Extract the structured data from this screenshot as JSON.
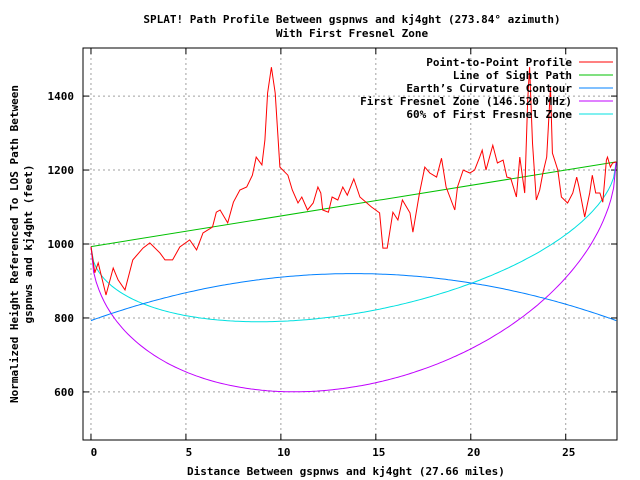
{
  "chart_data": {
    "type": "line",
    "title": "SPLAT! Path Profile Between gspnws and kj4ght (273.84° azimuth)",
    "subtitle": "With First Fresnel Zone",
    "xlabel": "Distance Between gspnws and kj4ght (27.66 miles)",
    "ylabel_lines": [
      "Normalized Height Referenced To LOS Path Between",
      "gspnws and kj4ght (feet)"
    ],
    "xlim": [
      -0.42,
      27.7
    ],
    "ylim": [
      470,
      1530
    ],
    "grid": true,
    "legend_placement": "top-right",
    "x_ticks": [
      0,
      5,
      10,
      15,
      20,
      25
    ],
    "y_ticks": [
      600,
      800,
      1000,
      1200,
      1400
    ],
    "path_length_miles": 27.66,
    "series": [
      {
        "name": "Point-to-Point Profile",
        "color": "#ff0000",
        "points": [
          [
            0,
            993
          ],
          [
            0.2,
            922
          ],
          [
            0.38,
            949
          ],
          [
            0.79,
            862
          ],
          [
            1.17,
            935
          ],
          [
            1.43,
            903
          ],
          [
            1.79,
            876
          ],
          [
            2.2,
            957
          ],
          [
            2.74,
            989
          ],
          [
            3.1,
            1003
          ],
          [
            3.63,
            976
          ],
          [
            3.9,
            957
          ],
          [
            4.3,
            957
          ],
          [
            4.68,
            992
          ],
          [
            5.2,
            1011
          ],
          [
            5.56,
            984
          ],
          [
            5.9,
            1030
          ],
          [
            6.4,
            1046
          ],
          [
            6.6,
            1086
          ],
          [
            6.8,
            1092
          ],
          [
            7.2,
            1057
          ],
          [
            7.5,
            1113
          ],
          [
            7.84,
            1146
          ],
          [
            8.2,
            1154
          ],
          [
            8.5,
            1186
          ],
          [
            8.7,
            1235
          ],
          [
            9.0,
            1214
          ],
          [
            9.16,
            1281
          ],
          [
            9.3,
            1408
          ],
          [
            9.5,
            1478
          ],
          [
            9.7,
            1408
          ],
          [
            9.95,
            1208
          ],
          [
            10.37,
            1186
          ],
          [
            10.6,
            1146
          ],
          [
            10.9,
            1111
          ],
          [
            11.1,
            1127
          ],
          [
            11.4,
            1092
          ],
          [
            11.7,
            1111
          ],
          [
            11.95,
            1154
          ],
          [
            12.1,
            1138
          ],
          [
            12.2,
            1092
          ],
          [
            12.5,
            1086
          ],
          [
            12.7,
            1127
          ],
          [
            13.0,
            1119
          ],
          [
            13.26,
            1154
          ],
          [
            13.5,
            1132
          ],
          [
            13.84,
            1176
          ],
          [
            14.16,
            1127
          ],
          [
            14.77,
            1100
          ],
          [
            15.2,
            1084
          ],
          [
            15.37,
            989
          ],
          [
            15.6,
            989
          ],
          [
            15.9,
            1086
          ],
          [
            16.16,
            1065
          ],
          [
            16.4,
            1119
          ],
          [
            16.8,
            1084
          ],
          [
            16.95,
            1032
          ],
          [
            17.3,
            1138
          ],
          [
            17.58,
            1208
          ],
          [
            17.84,
            1192
          ],
          [
            18.2,
            1181
          ],
          [
            18.46,
            1232
          ],
          [
            18.7,
            1154
          ],
          [
            19.16,
            1092
          ],
          [
            19.3,
            1154
          ],
          [
            19.6,
            1200
          ],
          [
            19.95,
            1192
          ],
          [
            20.2,
            1200
          ],
          [
            20.47,
            1235
          ],
          [
            20.6,
            1254
          ],
          [
            20.8,
            1200
          ],
          [
            21.16,
            1267
          ],
          [
            21.4,
            1219
          ],
          [
            21.7,
            1227
          ],
          [
            21.9,
            1181
          ],
          [
            22.1,
            1178
          ],
          [
            22.4,
            1127
          ],
          [
            22.58,
            1235
          ],
          [
            22.84,
            1138
          ],
          [
            23.0,
            1389
          ],
          [
            23.1,
            1478
          ],
          [
            23.25,
            1273
          ],
          [
            23.45,
            1119
          ],
          [
            23.63,
            1146
          ],
          [
            23.8,
            1192
          ],
          [
            24.0,
            1235
          ],
          [
            24.2,
            1424
          ],
          [
            24.3,
            1246
          ],
          [
            24.58,
            1200
          ],
          [
            24.77,
            1127
          ],
          [
            25.1,
            1111
          ],
          [
            25.37,
            1138
          ],
          [
            25.58,
            1181
          ],
          [
            25.7,
            1154
          ],
          [
            26.0,
            1073
          ],
          [
            26.26,
            1138
          ],
          [
            26.4,
            1186
          ],
          [
            26.58,
            1138
          ],
          [
            26.8,
            1138
          ],
          [
            26.95,
            1113
          ],
          [
            27.14,
            1227
          ],
          [
            27.2,
            1235
          ],
          [
            27.35,
            1208
          ],
          [
            27.47,
            1219
          ],
          [
            27.66,
            1222
          ]
        ]
      },
      {
        "name": "Line of Sight Path",
        "color": "#00c000",
        "start_ft": 993,
        "end_ft": 1222
      },
      {
        "name": "Earth’s Curvature Contour",
        "color": "#0080ff",
        "end_ft": 793,
        "mid_bulge_ft": 127
      },
      {
        "name": "First Fresnel Zone (146.520 MHz)",
        "color": "#c000ff",
        "mid_radius_ft": 494
      },
      {
        "name": "60% of First Fresnel Zone",
        "color": "#00e0e0",
        "fraction": 0.6
      }
    ]
  }
}
